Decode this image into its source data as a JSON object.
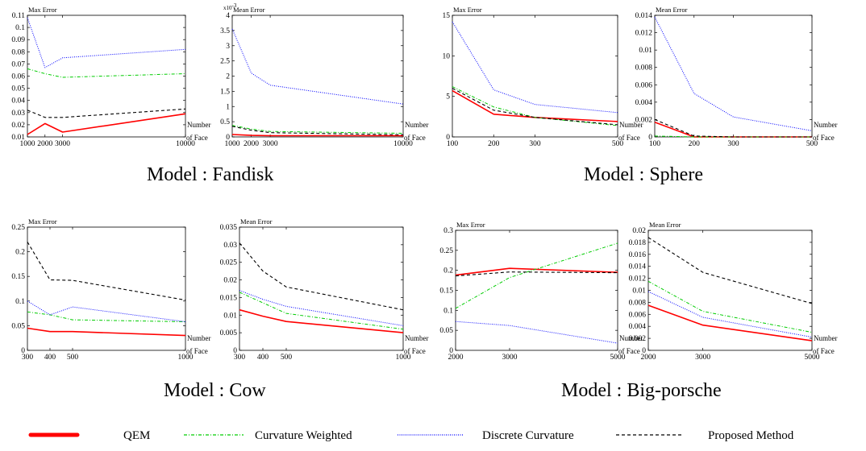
{
  "colors": {
    "qem": "#ff0000",
    "curvature_weighted": "#00cc00",
    "discrete_curvature": "#0000ff",
    "proposed": "#000000"
  },
  "legend": {
    "items": [
      {
        "label": "QEM",
        "color": "#ff0000",
        "style": "solid-thick"
      },
      {
        "label": "Curvature Weighted",
        "color": "#00cc00",
        "style": "dashdot"
      },
      {
        "label": "Discrete Curvature",
        "color": "#0000ff",
        "style": "dotted"
      },
      {
        "label": "Proposed Method",
        "color": "#000000",
        "style": "dashed"
      }
    ]
  },
  "models": [
    {
      "caption": "Model : Fandisk"
    },
    {
      "caption": "Model : Sphere"
    },
    {
      "caption": "Model : Cow"
    },
    {
      "caption": "Model : Big-porsche"
    }
  ],
  "chart_data": [
    {
      "type": "line",
      "model": "Fandisk",
      "title": "Max Error",
      "xlabel": "Number of Face",
      "x": [
        1000,
        2000,
        3000,
        10000
      ],
      "xticks": [
        "1000",
        "2000",
        "3000",
        "10000"
      ],
      "xlim": [
        1000,
        10000
      ],
      "ylim": [
        0.01,
        0.11
      ],
      "yticks": [
        "0.01",
        "0.02",
        "0.03",
        "0.04",
        "0.05",
        "0.06",
        "0.07",
        "0.08",
        "0.09",
        "0.1",
        "0.11"
      ],
      "series": [
        {
          "name": "QEM",
          "values": [
            0.012,
            0.021,
            0.014,
            0.029
          ]
        },
        {
          "name": "Curvature Weighted",
          "values": [
            0.066,
            0.062,
            0.059,
            0.062
          ]
        },
        {
          "name": "Discrete Curvature",
          "values": [
            0.108,
            0.067,
            0.075,
            0.082
          ]
        },
        {
          "name": "Proposed Method",
          "values": [
            0.032,
            0.026,
            0.026,
            0.033
          ]
        }
      ]
    },
    {
      "type": "line",
      "model": "Fandisk",
      "title": "Mean Error",
      "xlabel": "Number of Face",
      "multiplier": "x10^-3",
      "x": [
        1000,
        2000,
        3000,
        10000
      ],
      "xticks": [
        "1000",
        "2000",
        "3000",
        "10000"
      ],
      "xlim": [
        1000,
        10000
      ],
      "ylim": [
        0,
        4
      ],
      "yticks": [
        "0",
        "0.5",
        "1",
        "1.5",
        "2",
        "2.5",
        "3",
        "3.5",
        "4"
      ],
      "series": [
        {
          "name": "QEM",
          "values": [
            0.08,
            0.05,
            0.04,
            0.04
          ]
        },
        {
          "name": "Curvature Weighted",
          "values": [
            0.38,
            0.26,
            0.18,
            0.12
          ]
        },
        {
          "name": "Discrete Curvature",
          "values": [
            3.55,
            2.1,
            1.7,
            1.08
          ]
        },
        {
          "name": "Proposed Method",
          "values": [
            0.35,
            0.22,
            0.14,
            0.07
          ]
        }
      ]
    },
    {
      "type": "line",
      "model": "Sphere",
      "title": "Max Error",
      "xlabel": "Number of Face",
      "x": [
        100,
        200,
        300,
        500
      ],
      "xticks": [
        "100",
        "200",
        "300",
        "500"
      ],
      "xlim": [
        100,
        500
      ],
      "ylim": [
        0,
        15
      ],
      "yticks": [
        "0",
        "5",
        "10",
        "15"
      ],
      "series": [
        {
          "name": "QEM",
          "values": [
            5.7,
            2.8,
            2.4,
            1.9
          ]
        },
        {
          "name": "Curvature Weighted",
          "values": [
            6.2,
            3.7,
            2.4,
            1.4
          ]
        },
        {
          "name": "Discrete Curvature",
          "values": [
            14.2,
            5.8,
            4.0,
            3.0
          ]
        },
        {
          "name": "Proposed Method",
          "values": [
            6.0,
            3.3,
            2.4,
            1.5
          ]
        }
      ]
    },
    {
      "type": "line",
      "model": "Sphere",
      "title": "Mean Error",
      "xlabel": "Number of Face",
      "x": [
        100,
        200,
        300,
        500
      ],
      "xticks": [
        "100",
        "200",
        "300",
        "500"
      ],
      "xlim": [
        100,
        500
      ],
      "ylim": [
        0,
        0.014
      ],
      "yticks": [
        "0",
        "0.002",
        "0.004",
        "0.006",
        "0.008",
        "0.01",
        "0.012",
        "0.014"
      ],
      "series": [
        {
          "name": "QEM",
          "values": [
            0.0017,
            0.0,
            0.0,
            0.0
          ]
        },
        {
          "name": "Curvature Weighted",
          "values": [
            0.0001,
            0.0,
            0.0,
            0.0
          ]
        },
        {
          "name": "Discrete Curvature",
          "values": [
            0.0138,
            0.005,
            0.0023,
            0.0007
          ]
        },
        {
          "name": "Proposed Method",
          "values": [
            0.002,
            0.0001,
            0.0,
            0.0
          ]
        }
      ]
    },
    {
      "type": "line",
      "model": "Cow",
      "title": "Max Error",
      "xlabel": "Number of Face",
      "x": [
        300,
        400,
        500,
        1000
      ],
      "xticks": [
        "300",
        "400",
        "500",
        "1000"
      ],
      "xlim": [
        300,
        1000
      ],
      "ylim": [
        0,
        0.25
      ],
      "yticks": [
        "0",
        "0.05",
        "0.1",
        "0.15",
        "0.2",
        "0.25"
      ],
      "series": [
        {
          "name": "QEM",
          "values": [
            0.045,
            0.038,
            0.038,
            0.03
          ]
        },
        {
          "name": "Curvature Weighted",
          "values": [
            0.078,
            0.072,
            0.062,
            0.058
          ]
        },
        {
          "name": "Discrete Curvature",
          "values": [
            0.1,
            0.072,
            0.088,
            0.058
          ]
        },
        {
          "name": "Proposed Method",
          "values": [
            0.22,
            0.143,
            0.142,
            0.102
          ]
        }
      ]
    },
    {
      "type": "line",
      "model": "Cow",
      "title": "Mean Error",
      "xlabel": "Number of Face",
      "x": [
        300,
        400,
        500,
        1000
      ],
      "xticks": [
        "300",
        "400",
        "500",
        "1000"
      ],
      "xlim": [
        300,
        1000
      ],
      "ylim": [
        0,
        0.035
      ],
      "yticks": [
        "0",
        "0.005",
        "0.01",
        "0.015",
        "0.02",
        "0.025",
        "0.03",
        "0.035"
      ],
      "series": [
        {
          "name": "QEM",
          "values": [
            0.0115,
            0.0097,
            0.0082,
            0.005
          ]
        },
        {
          "name": "Curvature Weighted",
          "values": [
            0.0165,
            0.0135,
            0.0105,
            0.006
          ]
        },
        {
          "name": "Discrete Curvature",
          "values": [
            0.017,
            0.0145,
            0.0125,
            0.007
          ]
        },
        {
          "name": "Proposed Method",
          "values": [
            0.0305,
            0.0225,
            0.018,
            0.0115
          ]
        }
      ]
    },
    {
      "type": "line",
      "model": "Big-porsche",
      "title": "Max Error",
      "xlabel": "Number of Face",
      "x": [
        2000,
        3000,
        5000
      ],
      "xticks": [
        "2000",
        "3000",
        "5000"
      ],
      "xlim": [
        2000,
        5000
      ],
      "ylim": [
        0,
        0.3
      ],
      "yticks": [
        "0",
        "0.05",
        "0.1",
        "0.15",
        "0.2",
        "0.25",
        "0.3"
      ],
      "series": [
        {
          "name": "QEM",
          "values": [
            0.188,
            0.205,
            0.195
          ]
        },
        {
          "name": "Curvature Weighted",
          "values": [
            0.105,
            0.182,
            0.268
          ]
        },
        {
          "name": "Discrete Curvature",
          "values": [
            0.072,
            0.062,
            0.018
          ]
        },
        {
          "name": "Proposed Method",
          "values": [
            0.186,
            0.196,
            0.194
          ]
        }
      ]
    },
    {
      "type": "line",
      "model": "Big-porsche",
      "title": "Mean Error",
      "xlabel": "Number of Face",
      "x": [
        2000,
        3000,
        5000
      ],
      "xticks": [
        "2000",
        "3000",
        "5000"
      ],
      "xlim": [
        2000,
        5000
      ],
      "ylim": [
        0,
        0.02
      ],
      "yticks": [
        "0",
        "0.002",
        "0.004",
        "0.006",
        "0.008",
        "0.01",
        "0.012",
        "0.014",
        "0.016",
        "0.018",
        "0.02"
      ],
      "series": [
        {
          "name": "QEM",
          "values": [
            0.0075,
            0.0042,
            0.0016
          ]
        },
        {
          "name": "Curvature Weighted",
          "values": [
            0.0115,
            0.0065,
            0.003
          ]
        },
        {
          "name": "Discrete Curvature",
          "values": [
            0.0098,
            0.0055,
            0.0022
          ]
        },
        {
          "name": "Proposed Method",
          "values": [
            0.0188,
            0.013,
            0.0078
          ]
        }
      ]
    }
  ]
}
